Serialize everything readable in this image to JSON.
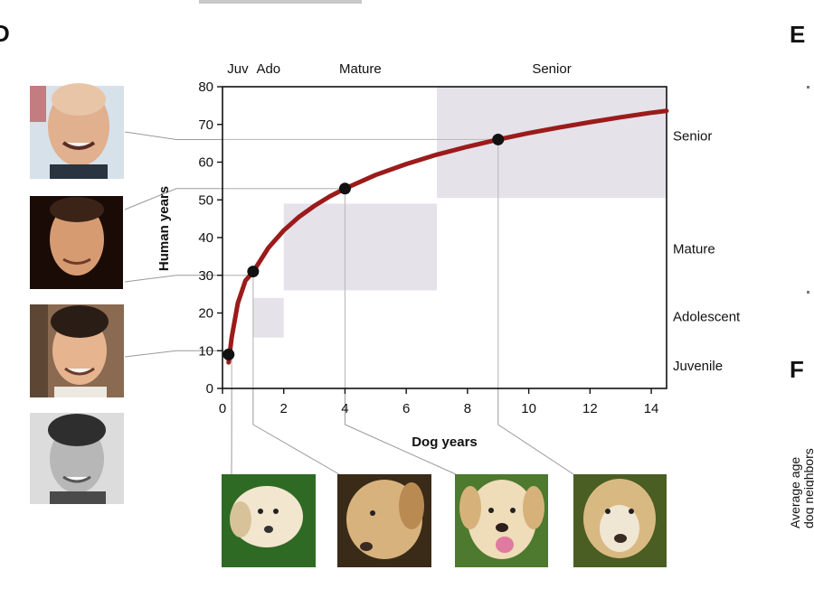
{
  "panels": {
    "d": "D",
    "e": "E",
    "f": "F"
  },
  "right_panel_f": {
    "ylabel_lines": [
      "Average age",
      "dog neighbors"
    ]
  },
  "chart_data": {
    "type": "line",
    "title": "",
    "xlabel": "Dog years",
    "ylabel": "Human years",
    "xlim": [
      0,
      14.5
    ],
    "ylim": [
      0,
      80
    ],
    "xticks": [
      0,
      2,
      4,
      6,
      8,
      10,
      12,
      14
    ],
    "yticks": [
      0,
      10,
      20,
      30,
      40,
      50,
      60,
      70,
      80
    ],
    "grid": false,
    "series": [
      {
        "color": "#9b1b1b",
        "x": [
          0.2,
          0.3,
          0.5,
          0.75,
          1,
          1.5,
          2,
          2.5,
          3,
          3.5,
          4,
          5,
          6,
          7,
          8,
          9,
          10,
          11,
          12,
          13,
          14,
          14.5
        ],
        "y": [
          6.9,
          13.5,
          22.6,
          28.6,
          30.9,
          37.3,
          41.9,
          45.5,
          48.4,
          50.9,
          53.0,
          56.6,
          59.5,
          62.0,
          64.1,
          66.0,
          67.7,
          69.2,
          70.6,
          71.9,
          73.1,
          73.6
        ]
      }
    ],
    "points": [
      {
        "x": 0.2,
        "y": 9
      },
      {
        "x": 1,
        "y": 31
      },
      {
        "x": 4,
        "y": 53
      },
      {
        "x": 9,
        "y": 66
      }
    ],
    "stages_top": [
      {
        "label": "Juv",
        "x0": 0,
        "x1": 1
      },
      {
        "label": "Ado",
        "x0": 1,
        "x1": 2
      },
      {
        "label": "Mature",
        "x0": 2,
        "x1": 7
      },
      {
        "label": "Senior",
        "x0": 7,
        "x1": 14.5
      }
    ],
    "stages_side": [
      {
        "label": "Senior",
        "y": 67
      },
      {
        "label": "Mature",
        "y": 37
      },
      {
        "label": "Adolescent",
        "y": 19
      },
      {
        "label": "Juvenile",
        "y": 6
      }
    ],
    "shaded_regions": [
      {
        "x0": 1,
        "x1": 2,
        "y0": 13.5,
        "y1": 24
      },
      {
        "x0": 2,
        "x1": 7,
        "y0": 26,
        "y1": 49
      },
      {
        "x0": 7,
        "x1": 14.5,
        "y0": 50.5,
        "y1": 80
      }
    ],
    "human_photo_links_y": [
      66,
      53,
      30,
      10
    ],
    "dog_photo_links_x": [
      0.3,
      1,
      4,
      9
    ]
  }
}
